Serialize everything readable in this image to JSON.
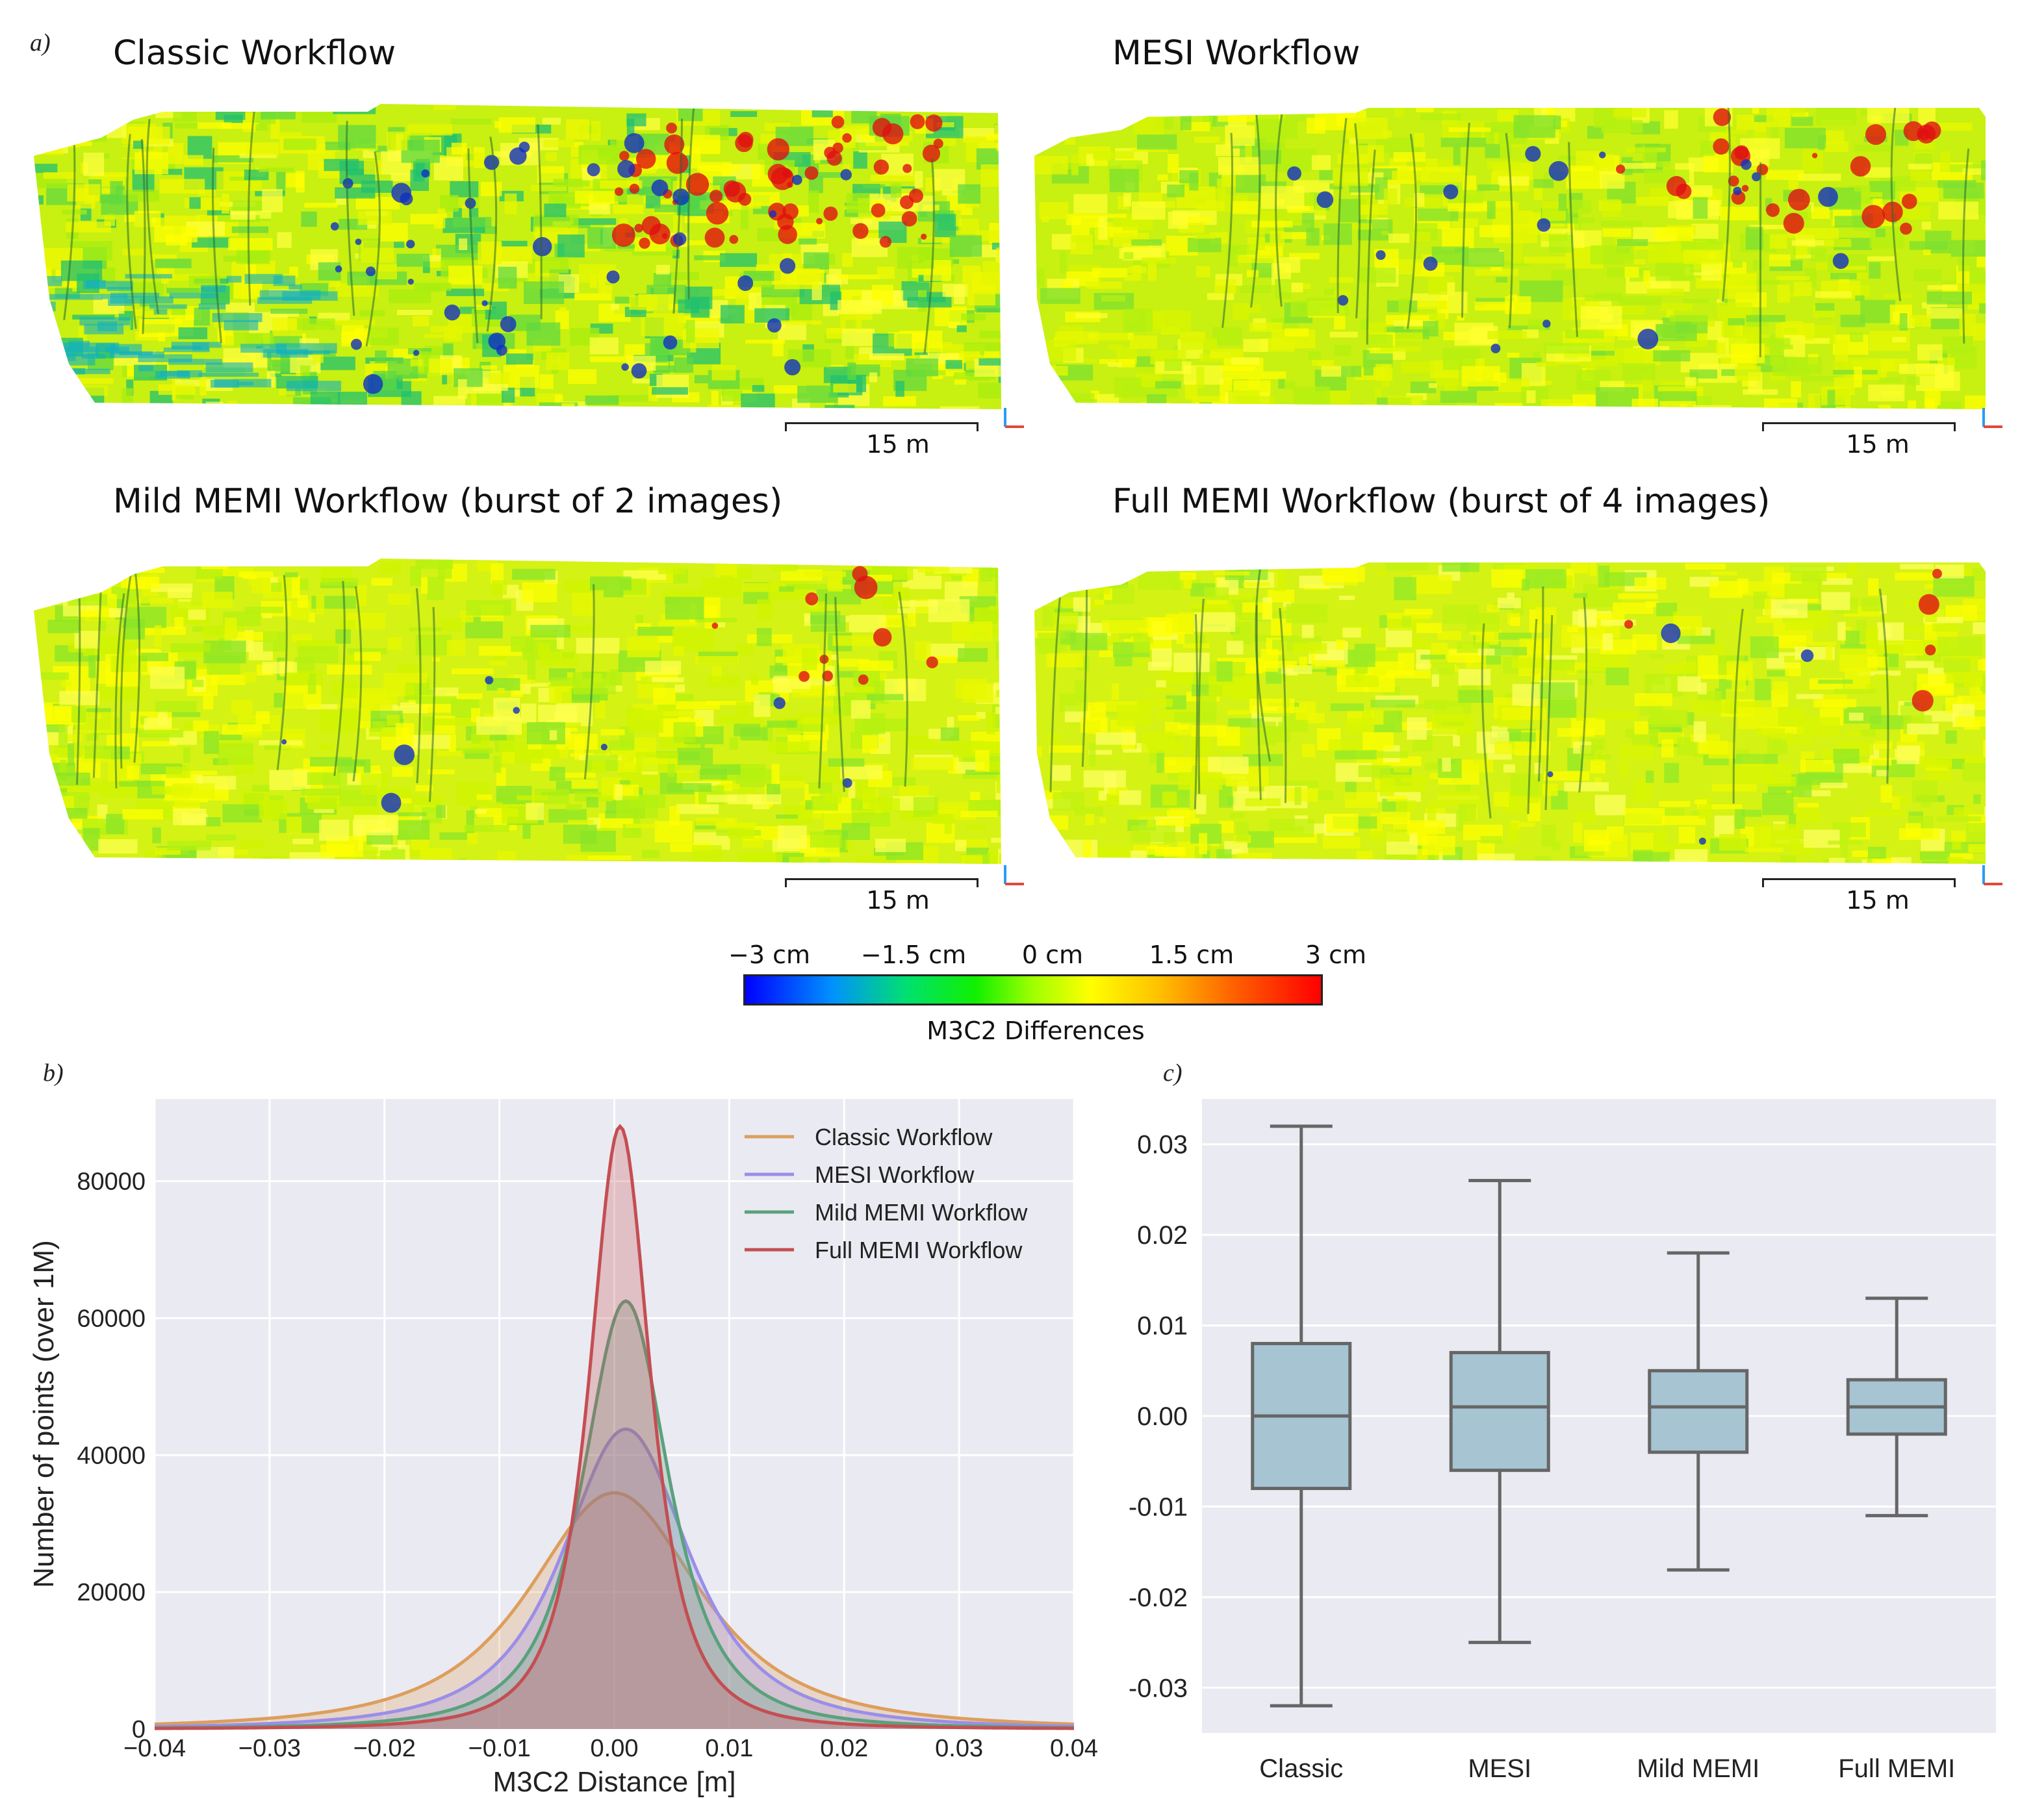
{
  "panel_labels": {
    "a": "a)",
    "b": "b)",
    "c": "c)"
  },
  "maps": [
    {
      "title": "Classic Workflow",
      "scale": "15 m"
    },
    {
      "title": "MESI Workflow",
      "scale": "15 m"
    },
    {
      "title": "Mild MEMI Workflow (burst of 2 images)",
      "scale": "15 m"
    },
    {
      "title": "Full MEMI Workflow (burst of 4 images)",
      "scale": "15 m"
    }
  ],
  "colorbar": {
    "ticks": [
      "−3 cm",
      "−1.5 cm",
      "0 cm",
      "1.5 cm",
      "3 cm"
    ],
    "title": "M3C2 Differences"
  },
  "chart_data": [
    {
      "type": "area",
      "panel": "b)",
      "xlabel": "M3C2 Distance [m]",
      "ylabel": "Number of points (over 1M)",
      "xlim": [
        -0.04,
        0.04
      ],
      "ylim": [
        0,
        92000
      ],
      "xticks": [
        "−0.04",
        "−0.03",
        "−0.02",
        "−0.01",
        "0.00",
        "0.01",
        "0.02",
        "0.03",
        "0.04"
      ],
      "yticks": [
        "0",
        "20000",
        "40000",
        "60000",
        "80000"
      ],
      "legend": "top-right",
      "grid": true,
      "series": [
        {
          "name": "Classic Workflow",
          "color": "#dd9e5c",
          "peak": 34500,
          "gamma": 0.0115,
          "x0": 0.0
        },
        {
          "name": "MESI Workflow",
          "color": "#9b8ee8",
          "peak": 43800,
          "gamma": 0.0085,
          "x0": 0.001
        },
        {
          "name": "Mild MEMI Workflow",
          "color": "#5aa17c",
          "peak": 62500,
          "gamma": 0.0058,
          "x0": 0.001
        },
        {
          "name": "Full MEMI Workflow",
          "color": "#c44e52",
          "peak": 88000,
          "gamma": 0.0041,
          "x0": 0.0005
        }
      ]
    },
    {
      "type": "box",
      "panel": "c)",
      "ylim": [
        -0.035,
        0.035
      ],
      "yticks": [
        "0.03",
        "0.02",
        "0.01",
        "0.00",
        "-0.01",
        "-0.02",
        "-0.03"
      ],
      "categories": [
        "Classic",
        "MESI",
        "Mild MEMI",
        "Full MEMI"
      ],
      "boxes": [
        {
          "name": "Classic",
          "whislo": -0.032,
          "q1": -0.008,
          "med": 0.0,
          "q3": 0.008,
          "whishi": 0.032
        },
        {
          "name": "MESI",
          "whislo": -0.025,
          "q1": -0.006,
          "med": 0.001,
          "q3": 0.007,
          "whishi": 0.026
        },
        {
          "name": "Mild MEMI",
          "whislo": -0.017,
          "q1": -0.004,
          "med": 0.001,
          "q3": 0.005,
          "whishi": 0.018
        },
        {
          "name": "Full MEMI",
          "whislo": -0.011,
          "q1": -0.002,
          "med": 0.001,
          "q3": 0.004,
          "whishi": 0.013
        }
      ],
      "box_color": "#a6c4d2",
      "line_color": "#666666"
    }
  ]
}
